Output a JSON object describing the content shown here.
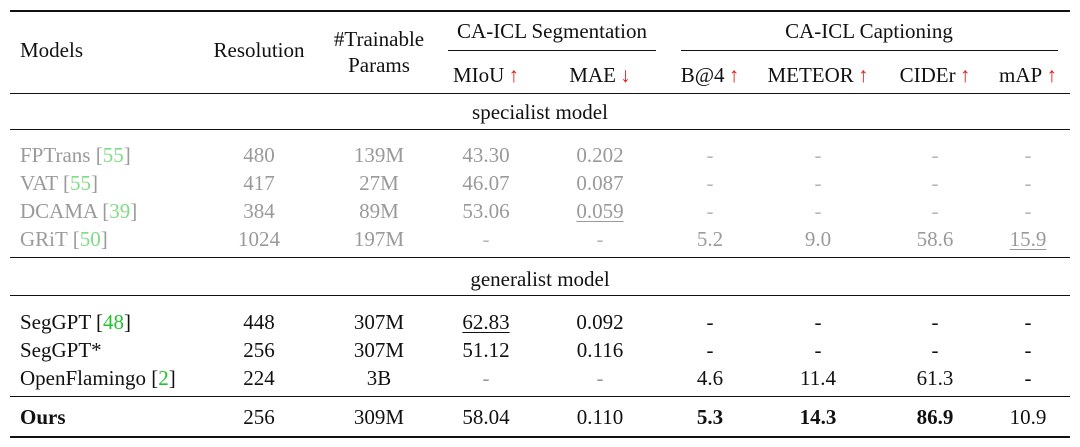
{
  "header": {
    "models": "Models",
    "resolution": "Resolution",
    "trainable_line1": "#Trainable",
    "trainable_line2": "Params",
    "group_seg": "CA-ICL Segmentation",
    "group_cap": "CA-ICL Captioning",
    "cols": [
      {
        "label": "MIoU",
        "arrow": "↑",
        "arrow_color": "#e81c1c"
      },
      {
        "label": "MAE",
        "arrow": "↓",
        "arrow_color": "#e81c1c"
      },
      {
        "label": "B@4",
        "arrow": "↑",
        "arrow_color": "#e81c1c"
      },
      {
        "label": "METEOR",
        "arrow": "↑",
        "arrow_color": "#e81c1c"
      },
      {
        "label": "CIDEr",
        "arrow": "↑",
        "arrow_color": "#e81c1c"
      },
      {
        "label": "mAP",
        "arrow": "↑",
        "arrow_color": "#e81c1c"
      }
    ]
  },
  "sections": {
    "specialist": "specialist model",
    "generalist": "generalist model"
  },
  "rows": [
    {
      "name": "FPTrans",
      "ref": "55",
      "res": "480",
      "params": "139M",
      "miou": "43.30",
      "mae": "0.202",
      "b4": "-",
      "meteor": "-",
      "cider": "-",
      "map": "-"
    },
    {
      "name": "VAT",
      "ref": "55",
      "res": "417",
      "params": "27M",
      "miou": "46.07",
      "mae": "0.087",
      "b4": "-",
      "meteor": "-",
      "cider": "-",
      "map": "-"
    },
    {
      "name": "DCAMA",
      "ref": "39",
      "res": "384",
      "params": "89M",
      "miou": "53.06",
      "mae": "0.059",
      "b4": "-",
      "meteor": "-",
      "cider": "-",
      "map": "-"
    },
    {
      "name": "GRiT",
      "ref": "50",
      "res": "1024",
      "params": "197M",
      "miou": "-",
      "mae": "-",
      "b4": "5.2",
      "meteor": "9.0",
      "cider": "58.6",
      "map": "15.9"
    },
    {
      "name": "SegGPT",
      "ref": "48",
      "res": "448",
      "params": "307M",
      "miou": "62.83",
      "mae": "0.092",
      "b4": "-",
      "meteor": "-",
      "cider": "-",
      "map": "-"
    },
    {
      "name": "SegGPT*",
      "ref": "",
      "res": "256",
      "params": "307M",
      "miou": "51.12",
      "mae": "0.116",
      "b4": "-",
      "meteor": "-",
      "cider": "-",
      "map": "-"
    },
    {
      "name": "OpenFlamingo",
      "ref": "2",
      "res": "224",
      "params": "3B",
      "miou": "-",
      "mae": "-",
      "b4": "4.6",
      "meteor": "11.4",
      "cider": "61.3",
      "map": "-"
    },
    {
      "name": "Ours",
      "ref": "",
      "res": "256",
      "params": "309M",
      "miou": "58.04",
      "mae": "0.110",
      "b4": "5.3",
      "meteor": "14.3",
      "cider": "86.9",
      "map": "10.9"
    }
  ]
}
